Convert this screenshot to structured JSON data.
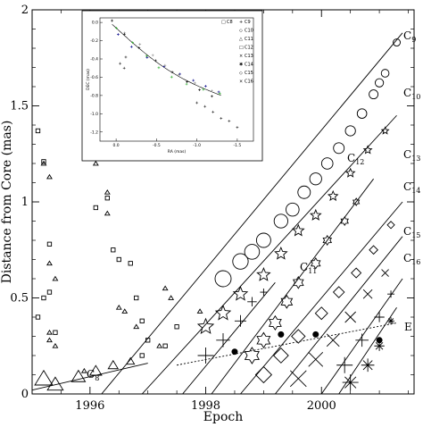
{
  "chart_data": {
    "type": "scatter",
    "xlabel": "Epoch",
    "ylabel": "Distance from Core (mas)",
    "xlim": [
      1995.0,
      2001.6
    ],
    "ylim": [
      0,
      2
    ],
    "xticks": [
      1996,
      1998,
      2000
    ],
    "yticks": [
      0,
      0.5,
      1,
      1.5,
      2
    ],
    "grid": false,
    "components": [
      {
        "name": "C",
        "sub": "8",
        "marker": "triangle",
        "points": [
          [
            1995.2,
            0.08
          ],
          [
            1995.4,
            0.05
          ],
          [
            1995.8,
            0.09
          ],
          [
            1996.1,
            0.12
          ],
          [
            1996.4,
            0.15
          ],
          [
            1996.7,
            0.17
          ]
        ],
        "fit": [
          [
            1995.0,
            0.02
          ],
          [
            1997.0,
            0.16
          ]
        ]
      },
      {
        "name": "C",
        "sub": "9",
        "marker": "circle",
        "points": [
          [
            1998.3,
            0.6
          ],
          [
            1998.6,
            0.69
          ],
          [
            1998.8,
            0.74
          ],
          [
            1999.0,
            0.8
          ],
          [
            1999.3,
            0.9
          ],
          [
            1999.5,
            0.96
          ],
          [
            1999.7,
            1.05
          ],
          [
            1999.9,
            1.12
          ],
          [
            2000.1,
            1.2
          ],
          [
            2000.3,
            1.28
          ],
          [
            2000.5,
            1.37
          ],
          [
            2000.7,
            1.46
          ],
          [
            2000.9,
            1.56
          ],
          [
            2001.0,
            1.62
          ],
          [
            2001.1,
            1.67
          ],
          [
            2001.3,
            1.83
          ]
        ],
        "fit": [
          [
            1996.2,
            0.0
          ],
          [
            2001.4,
            1.88
          ]
        ]
      },
      {
        "name": "C",
        "sub": "10",
        "marker": "star5",
        "points": [
          [
            1998.0,
            0.35
          ],
          [
            1998.3,
            0.42
          ],
          [
            1998.6,
            0.52
          ],
          [
            1999.0,
            0.62
          ],
          [
            1999.3,
            0.73
          ],
          [
            1999.6,
            0.85
          ],
          [
            1999.9,
            0.93
          ],
          [
            2000.2,
            1.03
          ],
          [
            2000.5,
            1.15
          ],
          [
            2000.8,
            1.27
          ],
          [
            2001.1,
            1.37
          ]
        ],
        "fit": [
          [
            1996.9,
            0.0
          ],
          [
            2001.3,
            1.45
          ]
        ]
      },
      {
        "name": "C",
        "sub": "11",
        "marker": "plus",
        "points": [
          [
            1998.0,
            0.2
          ],
          [
            1998.3,
            0.28
          ],
          [
            1998.6,
            0.38
          ],
          [
            1998.8,
            0.48
          ],
          [
            1999.0,
            0.53
          ]
        ],
        "fit": [
          [
            1997.6,
            0.0
          ],
          [
            1999.2,
            0.58
          ]
        ]
      },
      {
        "name": "C",
        "sub": "12",
        "marker": "star6",
        "points": [
          [
            1998.8,
            0.2
          ],
          [
            1999.0,
            0.28
          ],
          [
            1999.2,
            0.37
          ],
          [
            1999.4,
            0.48
          ],
          [
            1999.6,
            0.58
          ],
          [
            1999.9,
            0.68
          ],
          [
            2000.1,
            0.8
          ],
          [
            2000.4,
            0.9
          ],
          [
            2000.6,
            1.0
          ]
        ],
        "fit": [
          [
            1998.1,
            0.0
          ],
          [
            2000.9,
            1.12
          ]
        ]
      },
      {
        "name": "C",
        "sub": "13",
        "marker": "diamond",
        "points": [
          [
            1999.0,
            0.1
          ],
          [
            1999.3,
            0.2
          ],
          [
            1999.6,
            0.3
          ],
          [
            2000.0,
            0.42
          ],
          [
            2000.3,
            0.53
          ],
          [
            2000.6,
            0.63
          ],
          [
            2000.9,
            0.75
          ],
          [
            2001.2,
            0.88
          ]
        ],
        "fit": [
          [
            1998.6,
            0.0
          ],
          [
            2001.4,
            1.0
          ]
        ]
      },
      {
        "name": "C",
        "sub": "14",
        "marker": "cross",
        "points": [
          [
            1999.6,
            0.08
          ],
          [
            1999.9,
            0.18
          ],
          [
            2000.2,
            0.28
          ],
          [
            2000.5,
            0.4
          ],
          [
            2000.8,
            0.52
          ],
          [
            2001.1,
            0.63
          ]
        ],
        "fit": [
          [
            1999.2,
            0.0
          ],
          [
            2001.4,
            0.82
          ]
        ]
      },
      {
        "name": "C",
        "sub": "15",
        "marker": "plus",
        "points": [
          [
            2000.4,
            0.15
          ],
          [
            2000.7,
            0.28
          ],
          [
            2001.0,
            0.4
          ],
          [
            2001.2,
            0.52
          ]
        ],
        "fit": [
          [
            2000.0,
            0.0
          ],
          [
            2001.4,
            0.6
          ]
        ]
      },
      {
        "name": "C",
        "sub": "16",
        "marker": "star8",
        "points": [
          [
            2000.5,
            0.06
          ],
          [
            2000.8,
            0.15
          ],
          [
            2001.0,
            0.25
          ],
          [
            2001.2,
            0.38
          ]
        ],
        "fit": [
          [
            2000.3,
            0.0
          ],
          [
            2001.3,
            0.45
          ]
        ]
      },
      {
        "name": "E",
        "sub": "",
        "marker": "dot",
        "points": [
          [
            1998.5,
            0.22
          ],
          [
            1999.3,
            0.31
          ],
          [
            1999.9,
            0.31
          ],
          [
            2001.0,
            0.28
          ]
        ],
        "fit": [
          [
            1997.5,
            0.15
          ],
          [
            2001.3,
            0.37
          ]
        ],
        "dashed": true
      }
    ],
    "early_triangles": [
      [
        1995.2,
        1.2
      ],
      [
        1995.3,
        1.13
      ],
      [
        1995.3,
        0.68
      ],
      [
        1995.4,
        0.6
      ],
      [
        1995.3,
        0.32
      ],
      [
        1995.3,
        0.28
      ],
      [
        1995.4,
        0.25
      ],
      [
        1995.9,
        0.12
      ],
      [
        1996.1,
        1.2
      ],
      [
        1996.3,
        1.05
      ],
      [
        1996.3,
        0.94
      ],
      [
        1996.5,
        0.45
      ],
      [
        1996.6,
        0.43
      ],
      [
        1996.8,
        0.35
      ],
      [
        1997.2,
        0.25
      ],
      [
        1997.3,
        0.55
      ],
      [
        1997.4,
        0.5
      ],
      [
        1997.9,
        0.43
      ]
    ],
    "early_squares": [
      [
        1995.1,
        1.37
      ],
      [
        1995.2,
        1.21
      ],
      [
        1995.3,
        0.78
      ],
      [
        1995.3,
        0.53
      ],
      [
        1995.2,
        0.5
      ],
      [
        1995.1,
        0.4
      ],
      [
        1995.4,
        0.32
      ],
      [
        1996.1,
        0.97
      ],
      [
        1996.3,
        1.02
      ],
      [
        1996.4,
        0.75
      ],
      [
        1996.5,
        0.7
      ],
      [
        1996.7,
        0.68
      ],
      [
        1996.8,
        0.5
      ],
      [
        1996.9,
        0.38
      ],
      [
        1997.0,
        0.28
      ],
      [
        1996.9,
        0.2
      ],
      [
        1997.3,
        0.25
      ],
      [
        1997.5,
        0.35
      ]
    ],
    "inset": {
      "xlabel": "RA (mas)",
      "ylabel": "DEC (mas)",
      "xticks": [
        "0.0",
        "-0.5",
        "-1.0",
        "-1.5"
      ],
      "yticks": [
        "0.0",
        "-0.2",
        "-0.4",
        "-0.6",
        "-0.8",
        "-1.0",
        "-1.2"
      ],
      "xlim": [
        0.2,
        -1.7
      ],
      "ylim": [
        -1.3,
        0.05
      ],
      "legend": [
        {
          "label": "C8",
          "symbol": "□",
          "color": "#000000"
        },
        {
          "label": "C9",
          "symbol": "+",
          "color": "#000000"
        },
        {
          "label": "C10",
          "symbol": "◇",
          "color": "#1f77ff"
        },
        {
          "label": "C11",
          "symbol": "△",
          "color": "#22aa22"
        },
        {
          "label": "C12",
          "symbol": "□",
          "color": "#ff8800"
        },
        {
          "label": "C13",
          "symbol": "×",
          "color": "#ff8800"
        },
        {
          "label": "C14",
          "symbol": "✱",
          "color": "#000088"
        },
        {
          "label": "C15",
          "symbol": "◇",
          "color": "#000000"
        },
        {
          "label": "C16",
          "symbol": "×",
          "color": "#dd0000"
        }
      ]
    }
  }
}
